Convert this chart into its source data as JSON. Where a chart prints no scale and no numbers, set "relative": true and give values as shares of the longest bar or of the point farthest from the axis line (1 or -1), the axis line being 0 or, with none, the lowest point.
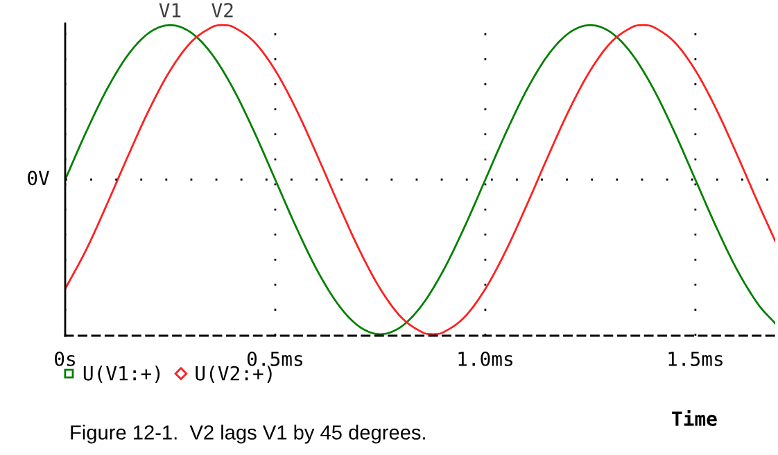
{
  "chart_data": {
    "type": "line",
    "relative": true,
    "title": "Figure 12-1.  V2 lags V1 by 45 degrees.",
    "xlabel": "Time",
    "xlim": [
      0,
      1.69
    ],
    "xticks": [
      {
        "value": 0,
        "label": "0s"
      },
      {
        "value": 0.5,
        "label": "0.5ms"
      },
      {
        "value": 1.0,
        "label": "1.0ms"
      },
      {
        "value": 1.5,
        "label": "1.5ms"
      }
    ],
    "ref_lines": [
      {
        "axis": "y",
        "value": 0,
        "label": "0V",
        "color": "#000000",
        "line_style": "dotted"
      }
    ],
    "grid": "x",
    "legend": "bottom left",
    "annotations": [
      {
        "text": "V1",
        "x": 0.25,
        "y": 1
      },
      {
        "text": "V2",
        "x": 0.375,
        "y": 1
      }
    ],
    "series": [
      {
        "name": "U(V1:+)",
        "color": "#008000",
        "x": [
          0,
          0.05,
          0.1,
          0.15,
          0.2,
          0.25,
          0.3,
          0.35,
          0.4,
          0.45,
          0.5,
          0.55,
          0.6,
          0.65,
          0.7,
          0.75,
          0.8,
          0.85,
          0.9,
          0.95,
          1.0,
          1.05,
          1.1,
          1.15,
          1.2,
          1.25,
          1.3,
          1.35,
          1.4,
          1.45,
          1.5,
          1.55,
          1.6,
          1.65,
          1.69
        ],
        "values": [
          0,
          0.309,
          0.588,
          0.809,
          0.951,
          1,
          0.951,
          0.809,
          0.588,
          0.309,
          0,
          -0.309,
          -0.588,
          -0.809,
          -0.951,
          -1,
          -0.951,
          -0.809,
          -0.588,
          -0.309,
          0,
          0.309,
          0.588,
          0.809,
          0.951,
          1,
          0.951,
          0.809,
          0.588,
          0.309,
          0,
          -0.309,
          -0.588,
          -0.809,
          -0.93
        ]
      },
      {
        "name": "U(V2:+)",
        "color": "#ff2020",
        "x": [
          0,
          0.05,
          0.1,
          0.15,
          0.2,
          0.25,
          0.3,
          0.35,
          0.375,
          0.4,
          0.45,
          0.5,
          0.55,
          0.6,
          0.65,
          0.7,
          0.75,
          0.8,
          0.85,
          0.875,
          0.9,
          0.95,
          1.0,
          1.05,
          1.1,
          1.15,
          1.2,
          1.25,
          1.3,
          1.35,
          1.375,
          1.4,
          1.45,
          1.5,
          1.55,
          1.6,
          1.65,
          1.69
        ],
        "values": [
          -0.707,
          -0.454,
          -0.156,
          0.156,
          0.454,
          0.707,
          0.891,
          0.988,
          1,
          0.988,
          0.891,
          0.707,
          0.454,
          0.156,
          -0.156,
          -0.454,
          -0.707,
          -0.891,
          -0.988,
          -1,
          -0.988,
          -0.891,
          -0.707,
          -0.454,
          -0.156,
          0.156,
          0.454,
          0.707,
          0.891,
          0.988,
          1,
          0.988,
          0.891,
          0.707,
          0.454,
          0.156,
          -0.156,
          -0.397
        ]
      }
    ]
  }
}
